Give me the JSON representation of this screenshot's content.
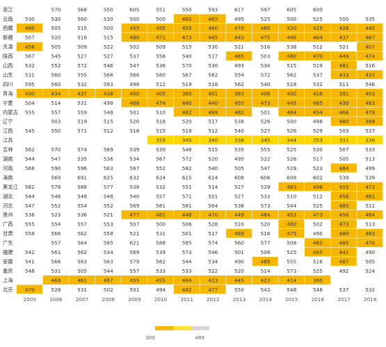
{
  "chart_data": {
    "type": "heatmap",
    "x_categories": [
      "2005",
      "2006",
      "2007",
      "2008",
      "2009",
      "2010",
      "2011",
      "2012",
      "2013",
      "2014",
      "2015",
      "2016",
      "2017",
      "2018"
    ],
    "y_categories": [
      "浙江",
      "云南",
      "西藏",
      "新疆",
      "天津",
      "陕西",
      "山西",
      "山东",
      "四川",
      "青海",
      "宁夏",
      "内蒙古",
      "辽宁",
      "江西",
      "江苏",
      "吉林",
      "湖南",
      "河南",
      "海南",
      "黑龙江",
      "湖北",
      "河北",
      "贵州",
      "广西",
      "甘肃",
      "广东",
      "福建",
      "安徽",
      "重庆",
      "上海",
      "北京"
    ],
    "values": [
      [
        null,
        570,
        568,
        550,
        605,
        551,
        550,
        593,
        617,
        597,
        605,
        600,
        null,
        null
      ],
      [
        530,
        530,
        560,
        530,
        500,
        500,
        465,
        465,
        495,
        525,
        500,
        525,
        500,
        535
      ],
      [
        480,
        505,
        515,
        500,
        455,
        455,
        455,
        460,
        470,
        460,
        420,
        425,
        426,
        445
      ],
      [
        507,
        520,
        518,
        515,
        480,
        471,
        473,
        445,
        443,
        475,
        446,
        464,
        437,
        467
      ],
      [
        458,
        505,
        509,
        522,
        502,
        509,
        515,
        530,
        521,
        516,
        538,
        512,
        521,
        407
      ],
      [
        567,
        545,
        527,
        527,
        537,
        556,
        540,
        517,
        485,
        503,
        480,
        470,
        449,
        474
      ],
      [
        532,
        552,
        572,
        546,
        547,
        536,
        570,
        530,
        493,
        534,
        515,
        519,
        481,
        516
      ],
      [
        531,
        560,
        555,
        566,
        586,
        580,
        567,
        582,
        554,
        572,
        562,
        537,
        433,
        435
      ],
      [
        595,
        560,
        532,
        593,
        498,
        512,
        519,
        518,
        562,
        540,
        528,
        532,
        511,
        546
      ],
      [
        430,
        434,
        437,
        438,
        400,
        405,
        380,
        401,
        383,
        406,
        400,
        416,
        391,
        403
      ],
      [
        504,
        514,
        531,
        498,
        468,
        474,
        480,
        440,
        455,
        473,
        445,
        465,
        439,
        463
      ],
      [
        555,
        557,
        559,
        548,
        501,
        510,
        482,
        469,
        482,
        501,
        464,
        454,
        466,
        478
      ],
      [
        null,
        503,
        519,
        515,
        520,
        518,
        520,
        517,
        538,
        526,
        500,
        498,
        480,
        368
      ],
      [
        545,
        550,
        571,
        512,
        518,
        515,
        518,
        512,
        540,
        527,
        526,
        529,
        503,
        527
      ],
      [
        null,
        null,
        null,
        null,
        null,
        355,
        345,
        340,
        338,
        345,
        344,
        353,
        331,
        336
      ],
      [
        562,
        570,
        574,
        569,
        539,
        530,
        548,
        515,
        535,
        555,
        525,
        530,
        507,
        533
      ],
      [
        544,
        547,
        535,
        536,
        534,
        567,
        572,
        520,
        495,
        522,
        526,
        517,
        505,
        513
      ],
      [
        568,
        590,
        596,
        563,
        567,
        552,
        582,
        540,
        505,
        547,
        529,
        523,
        484,
        499
      ],
      [
        null,
        569,
        691,
        625,
        632,
        624,
        615,
        614,
        608,
        606,
        608,
        602,
        539,
        539
      ],
      [
        582,
        578,
        588,
        577,
        538,
        532,
        551,
        514,
        527,
        529,
        483,
        486,
        455,
        472
      ],
      [
        544,
        546,
        548,
        548,
        540,
        557,
        571,
        551,
        527,
        533,
        510,
        512,
        458,
        461
      ],
      [
        547,
        552,
        554,
        552,
        569,
        561,
        581,
        564,
        538,
        573,
        544,
        525,
        485,
        511
      ],
      [
        536,
        523,
        536,
        521,
        477,
        481,
        448,
        470,
        449,
        484,
        453,
        473,
        456,
        484
      ],
      [
        555,
        554,
        557,
        553,
        507,
        500,
        506,
        528,
        510,
        520,
        480,
        502,
        473,
        513
      ],
      [
        558,
        566,
        562,
        558,
        521,
        531,
        501,
        517,
        489,
        516,
        475,
        490,
        480,
        483
      ],
      [
        null,
        557,
        564,
        585,
        621,
        588,
        585,
        574,
        560,
        577,
        508,
        485,
        485,
        476
      ],
      [
        542,
        561,
        562,
        534,
        569,
        539,
        573,
        546,
        501,
        506,
        525,
        465,
        441,
        490
      ],
      [
        541,
        566,
        563,
        563,
        579,
        562,
        544,
        534,
        490,
        489,
        555,
        516,
        487,
        505
      ],
      [
        548,
        531,
        505,
        544,
        557,
        533,
        533,
        522,
        520,
        514,
        573,
        525,
        492,
        524
      ],
      [
        null,
        468,
        461,
        467,
        455,
        455,
        464,
        423,
        445,
        423,
        414,
        360,
        null,
        null
      ],
      [
        470,
        528,
        531,
        502,
        501,
        494,
        482,
        477,
        550,
        543,
        548,
        548,
        537,
        532
      ]
    ],
    "color_scale": {
      "min_label": "300",
      "max_label": "489",
      "threshold": 489,
      "below_color": "#F5B700",
      "above_color": "#FFFFFF",
      "highlight_color": "#FFD700",
      "legend_colors": [
        "#F5B700",
        "#FFE033",
        "#D6D6D6"
      ]
    },
    "xlabel": "",
    "ylabel": "",
    "title": ""
  }
}
